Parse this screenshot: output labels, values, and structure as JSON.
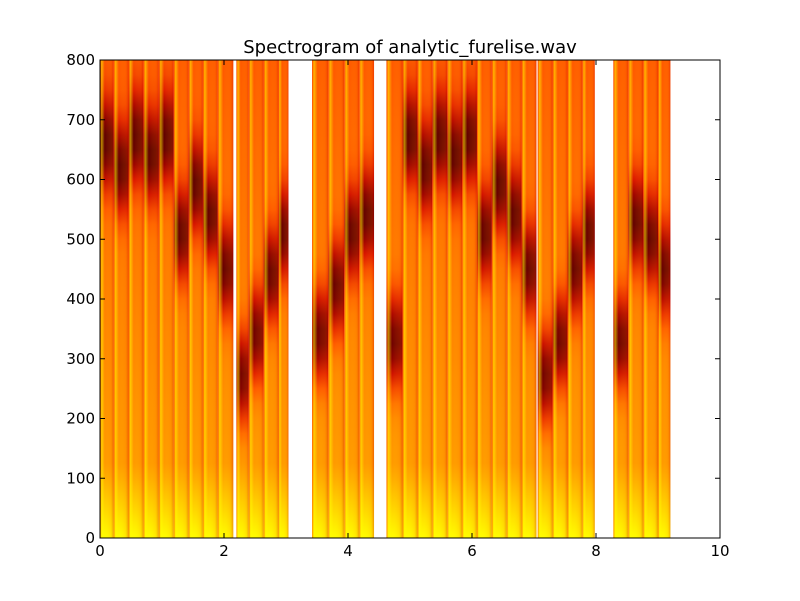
{
  "chart_data": {
    "type": "heatmap",
    "title": "Spectrogram of analytic_furelise.wav",
    "xlabel": "",
    "ylabel": "",
    "xlim": [
      0,
      10
    ],
    "ylim": [
      0,
      800
    ],
    "xticks": [
      0,
      2,
      4,
      6,
      8,
      10
    ],
    "yticks": [
      0,
      100,
      200,
      300,
      400,
      500,
      600,
      700,
      800
    ],
    "grid": false,
    "colormap": "hot",
    "colormap_stops": [
      "#ffff8e",
      "#ffff00",
      "#ffae00",
      "#ff5800",
      "#dc1400",
      "#9c0000",
      "#620000"
    ],
    "notes": [
      {
        "t0": 0.0,
        "t1": 0.22,
        "peak": 660
      },
      {
        "t0": 0.22,
        "t1": 0.46,
        "peak": 620
      },
      {
        "t0": 0.46,
        "t1": 0.7,
        "peak": 670
      },
      {
        "t0": 0.7,
        "t1": 0.95,
        "peak": 640
      },
      {
        "t0": 0.95,
        "t1": 1.19,
        "peak": 670
      },
      {
        "t0": 1.19,
        "t1": 1.43,
        "peak": 510
      },
      {
        "t0": 1.43,
        "t1": 1.66,
        "peak": 590
      },
      {
        "t0": 1.66,
        "t1": 1.9,
        "peak": 540
      },
      {
        "t0": 1.9,
        "t1": 2.15,
        "peak": 450
      },
      {
        "t0": 2.2,
        "t1": 2.4,
        "peak": 270
      },
      {
        "t0": 2.4,
        "t1": 2.64,
        "peak": 340
      },
      {
        "t0": 2.64,
        "t1": 2.88,
        "peak": 440
      },
      {
        "t0": 2.88,
        "t1": 3.04,
        "peak": 510
      },
      {
        "t0": 3.42,
        "t1": 3.68,
        "peak": 340
      },
      {
        "t0": 3.68,
        "t1": 3.94,
        "peak": 420
      },
      {
        "t0": 3.94,
        "t1": 4.18,
        "peak": 510
      },
      {
        "t0": 4.18,
        "t1": 4.42,
        "peak": 540
      },
      {
        "t0": 4.62,
        "t1": 4.88,
        "peak": 330
      },
      {
        "t0": 4.88,
        "t1": 5.12,
        "peak": 670
      },
      {
        "t0": 5.12,
        "t1": 5.36,
        "peak": 620
      },
      {
        "t0": 5.36,
        "t1": 5.6,
        "peak": 670
      },
      {
        "t0": 5.6,
        "t1": 5.84,
        "peak": 640
      },
      {
        "t0": 5.84,
        "t1": 6.08,
        "peak": 670
      },
      {
        "t0": 6.08,
        "t1": 6.32,
        "peak": 510
      },
      {
        "t0": 6.32,
        "t1": 6.56,
        "peak": 590
      },
      {
        "t0": 6.56,
        "t1": 6.8,
        "peak": 540
      },
      {
        "t0": 6.8,
        "t1": 7.04,
        "peak": 450
      },
      {
        "t0": 7.06,
        "t1": 7.3,
        "peak": 270
      },
      {
        "t0": 7.3,
        "t1": 7.54,
        "peak": 330
      },
      {
        "t0": 7.54,
        "t1": 7.78,
        "peak": 450
      },
      {
        "t0": 7.78,
        "t1": 7.98,
        "peak": 510
      },
      {
        "t0": 8.28,
        "t1": 8.52,
        "peak": 330
      },
      {
        "t0": 8.52,
        "t1": 8.76,
        "peak": 530
      },
      {
        "t0": 8.76,
        "t1": 9.0,
        "peak": 500
      },
      {
        "t0": 9.0,
        "t1": 9.2,
        "peak": 450
      }
    ],
    "silent_intervals": [
      [
        2.15,
        2.2
      ],
      [
        3.04,
        3.42
      ],
      [
        4.42,
        4.62
      ],
      [
        7.98,
        8.28
      ],
      [
        9.2,
        10.0
      ]
    ]
  }
}
